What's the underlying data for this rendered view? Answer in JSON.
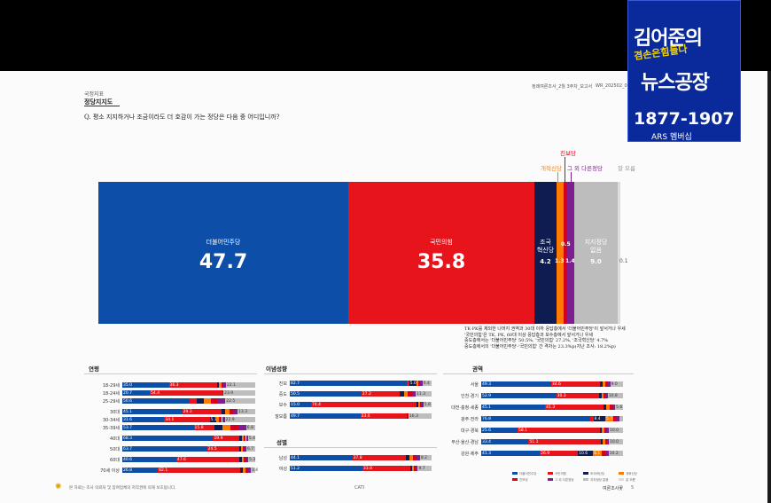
{
  "header": {
    "category": "국정지표",
    "section": "정당지지도",
    "question": "Q. 평소 지지하거나 조금이라도 더 호감이 가는 정당은 다음 중 어디입니까?",
    "report": "정례여론조사_2월 3주차_보고서",
    "report_code": "WR_202502_0"
  },
  "main_chart": {
    "bars": [
      {
        "name": "더불어민주당",
        "value": "47.7",
        "color": "#0d4fa8"
      },
      {
        "name": "국민의힘",
        "value": "35.8",
        "color": "#e8141c"
      },
      {
        "name": "조국혁신당",
        "value": "4.2",
        "color": "#0e1c52"
      },
      {
        "name": "개혁신당",
        "value": "1.3",
        "color": "#ff7a00"
      },
      {
        "name": "진보당",
        "value": "0.5",
        "color": "#d6001c"
      },
      {
        "name": "그 외 다른정당",
        "value": "1.4",
        "color": "#7d1f8f"
      },
      {
        "name": "지지정당 없음",
        "value": "9.0",
        "color": "#bdbdbd"
      },
      {
        "name": "잘 모름",
        "value": "0.1",
        "color": "#dcdcdc"
      }
    ],
    "extra_label": "0.5",
    "jogook_lines": [
      "조국",
      "혁신당"
    ],
    "none_lines": [
      "지지정당",
      "없음"
    ]
  },
  "note": {
    "lines": [
      "TK·PK를 제외한 나머지 권역과 30대 이하 응답층에서 '더불어민주당'이 앞서거나 우세",
      "'국민의힘'은 TK, PK, 60대 이상 응답층과 보수층에서 앞서거나 우세",
      "중도층에서는 '더불어민주당' 50.5%, '국민의힘' 27.2%, '조국혁신당' 4.7%",
      "중도층에서의 '더불어민주당'-'국민의힘' 간 격차는 23.3%p(지난 조사: 18.2%p)"
    ]
  },
  "sections": {
    "age": {
      "title": "연령",
      "rows": [
        {
          "label": "18-29세",
          "values": [
            "35.0",
            "36.3",
            "",
            "",
            "",
            "",
            "22.1"
          ]
        },
        {
          "label": "18-24세",
          "values": [
            "20.7",
            "54.4",
            "",
            "",
            "",
            "",
            "23.9"
          ]
        },
        {
          "label": "25-29세",
          "values": [
            "50.6",
            "",
            "",
            "",
            "",
            "",
            "22.5"
          ]
        },
        {
          "label": "30대",
          "values": [
            "45.1",
            "29.3",
            "",
            "",
            "",
            "",
            "13.3"
          ]
        },
        {
          "label": "30-34세",
          "values": [
            "31.6",
            "34.1",
            "5.1",
            "",
            "",
            "",
            "22.9"
          ]
        },
        {
          "label": "35-39세",
          "values": [
            "53.7",
            "15.8",
            "",
            "",
            "",
            "",
            "6.8"
          ]
        },
        {
          "label": "40대",
          "values": [
            "68.3",
            "19.9",
            "",
            "",
            "",
            "",
            "5.4"
          ]
        },
        {
          "label": "50대",
          "values": [
            "63.7",
            "24.5",
            "",
            "",
            "",
            "",
            "6.7"
          ]
        },
        {
          "label": "60대",
          "values": [
            "40.6",
            "47.6",
            "",
            "",
            "",
            "",
            "5.3"
          ]
        },
        {
          "label": "70세 이상",
          "values": [
            "26.8",
            "62.1",
            "",
            "",
            "",
            "",
            "3.4"
          ]
        }
      ]
    },
    "ideology": {
      "title": "이념성향",
      "rows": [
        {
          "label": "진보",
          "values": [
            "82.7",
            "",
            "5.0",
            "",
            "",
            "",
            "6.4"
          ]
        },
        {
          "label": "중도",
          "values": [
            "50.5",
            "27.2",
            "",
            "",
            "",
            "",
            "11.3"
          ]
        },
        {
          "label": "보수",
          "values": [
            "15.0",
            "74.4",
            "",
            "",
            "",
            "",
            "5.8"
          ]
        },
        {
          "label": "잘모름",
          "values": [
            "49.7",
            "33.0",
            "",
            "",
            "",
            "",
            "16.3"
          ]
        }
      ]
    },
    "gender": {
      "title": "성별",
      "rows": [
        {
          "label": "남성",
          "values": [
            "44.1",
            "37.8",
            "",
            "",
            "",
            "",
            "8.2"
          ]
        },
        {
          "label": "여성",
          "values": [
            "51.2",
            "33.8",
            "",
            "",
            "",
            "",
            "9.7"
          ]
        }
      ]
    },
    "region": {
      "title": "권역",
      "rows": [
        {
          "label": "서울",
          "values": [
            "49.3",
            "34.6",
            "",
            "",
            "",
            "",
            "9.0"
          ]
        },
        {
          "label": "인천·경기",
          "values": [
            "52.9",
            "30.3",
            "",
            "",
            "",
            "",
            "10.8"
          ]
        },
        {
          "label": "대전·충청·세종",
          "values": [
            "45.1",
            "41.3",
            "",
            "",
            "",
            "",
            "5.6"
          ]
        },
        {
          "label": "광주·전라",
          "values": [
            "76.8",
            "",
            "8.4",
            "5.7",
            "",
            "",
            ""
          ]
        },
        {
          "label": "대구·경북",
          "values": [
            "25.6",
            "58.1",
            "",
            "",
            "",
            "",
            "10.0"
          ]
        },
        {
          "label": "부산·울산·경남",
          "values": [
            "33.4",
            "51.1",
            "",
            "",
            "",
            "",
            "10.0"
          ]
        },
        {
          "label": "강원·제주",
          "values": [
            "41.3",
            "26.9",
            "10.6",
            "6.1",
            "",
            "",
            "10.2"
          ]
        }
      ]
    }
  },
  "legend": [
    "더불어민주당",
    "국민의힘",
    "조국혁신당",
    "개혁신당",
    "진보당",
    "그 외 다른정당",
    "지지정당 없음",
    "잘 모름"
  ],
  "footer": {
    "left": "본 자료는 조사 의뢰처 및 참여업체의 저작권에 의해 보호됩니다.",
    "center": "CATI",
    "right": "여론조사꽃",
    "page": "5"
  },
  "overlay": {
    "line1": "김어준의",
    "line2": "겸손은힘들다",
    "line3": "뉴스공장",
    "phone": "1877-1907",
    "subtitle": "ARS 멤버십"
  },
  "colors": {
    "dem": "#0d4fa8",
    "ppp": "#e8141c",
    "jogook": "#0e1c52",
    "reform": "#ff7a00",
    "jinbo": "#d6001c",
    "other": "#7d1f8f",
    "none": "#bdbdbd",
    "dunno": "#dcdcdc",
    "logo_bg": "#0a2a9c"
  }
}
